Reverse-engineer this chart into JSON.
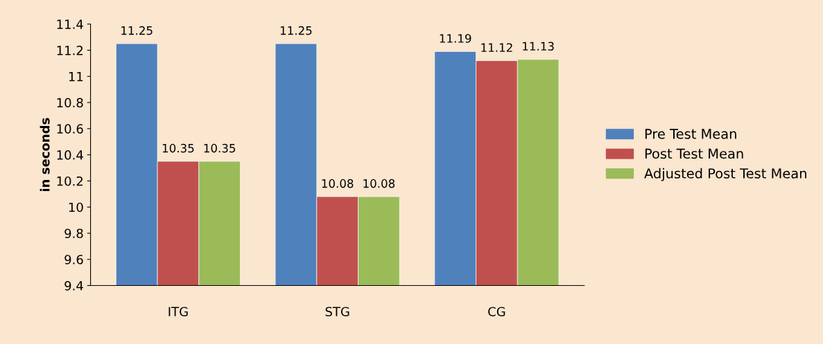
{
  "chart_data": {
    "type": "bar",
    "ylabel": "in seconds",
    "categories": [
      "ITG",
      "STG",
      "CG"
    ],
    "series": [
      {
        "name": "Pre Test Mean",
        "color": "#4f81bd",
        "values": [
          11.25,
          11.25,
          11.19
        ]
      },
      {
        "name": "Post Test Mean",
        "color": "#c0504d",
        "values": [
          10.35,
          10.08,
          11.12
        ]
      },
      {
        "name": "Adjusted Post Test Mean",
        "color": "#9bbb59",
        "values": [
          10.35,
          10.08,
          11.13
        ]
      }
    ],
    "ylim": [
      9.4,
      11.4
    ],
    "yticks": [
      9.4,
      9.6,
      9.8,
      10,
      10.2,
      10.4,
      10.6,
      10.8,
      11,
      11.2,
      11.4
    ],
    "data_labels": true,
    "grid": false,
    "legend": "right"
  }
}
